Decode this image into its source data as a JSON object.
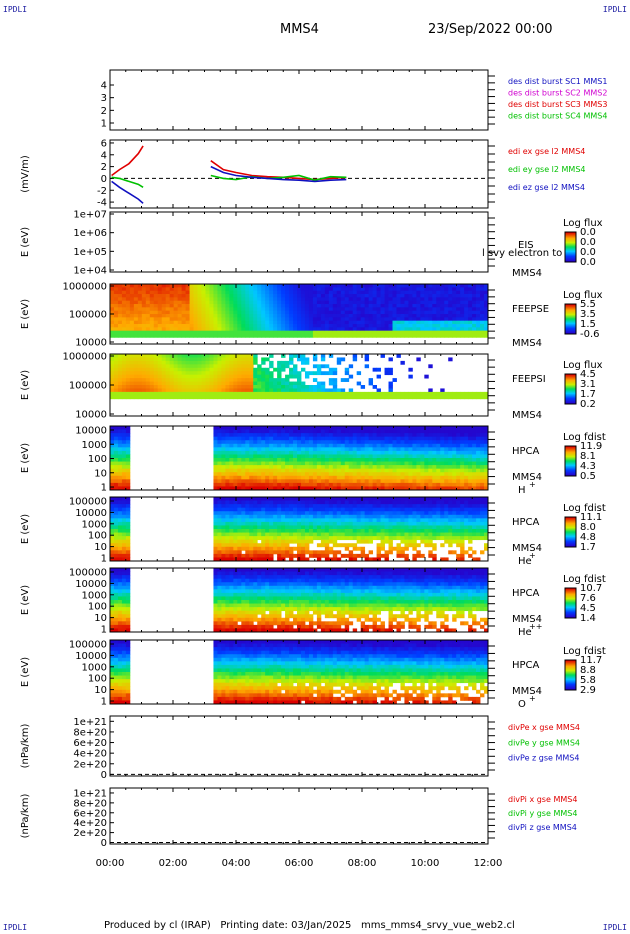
{
  "corners": {
    "tl": "IPDLI",
    "tr": "IPDLI",
    "bl": "IPDLI",
    "br": "IPDLI"
  },
  "header": {
    "spacecraft": "MMS4",
    "date": "23/Sep/2022 00:00"
  },
  "footer": {
    "produced_by": "Produced by cl (IRAP)",
    "printing_date": "Printing date: 03/Jan/2025",
    "script": "mms_mms4_srvy_vue_web2.cl"
  },
  "colors": {
    "blue": "#1010c0",
    "magenta": "#d000d0",
    "red": "#e00000",
    "green": "#00c000",
    "black": "#000000"
  },
  "chart_data": [
    {
      "type": "line",
      "panel": "sc-position",
      "ylabel": "",
      "yticks": [
        "1",
        "2",
        "3",
        "4"
      ],
      "ylim": [
        0.8,
        4.4
      ],
      "legend": [
        {
          "name": "des dist burst SC1 MMS1",
          "color": "#1010c0"
        },
        {
          "name": "des dist burst SC2 MMS2",
          "color": "#d000d0"
        },
        {
          "name": "des dist burst SC3 MMS3",
          "color": "#e00000"
        },
        {
          "name": "des dist burst SC4 MMS4",
          "color": "#00c000"
        }
      ],
      "series": []
    },
    {
      "type": "line",
      "panel": "edi-electric-field",
      "ylabel": "(mV/m)",
      "yticks": [
        "-4",
        "-2",
        "0",
        "2",
        "4",
        "6"
      ],
      "ylim": [
        -5,
        6.5
      ],
      "x_unit": "hours",
      "dashed_zero": true,
      "legend": [
        {
          "name": "edi ex gse l2 MMS4",
          "color": "#e00000"
        },
        {
          "name": "edi ey gse l2 MMS4",
          "color": "#00c000"
        },
        {
          "name": "edi ez gse l2 MMS4",
          "color": "#1010c0"
        }
      ],
      "series": [
        {
          "color": "#e00000",
          "x": [
            0.05,
            0.3,
            0.6,
            0.9,
            1.05,
            3.2,
            3.6,
            4.0,
            4.5,
            5.0,
            5.5,
            6.0,
            6.5,
            7.0,
            7.5
          ],
          "y": [
            0.5,
            1.5,
            2.5,
            4.2,
            5.5,
            3.0,
            1.5,
            1.0,
            0.5,
            0.3,
            0.2,
            0.0,
            -0.2,
            0.0,
            0.2
          ]
        },
        {
          "color": "#00c000",
          "x": [
            0.05,
            0.3,
            0.6,
            0.9,
            1.05,
            3.2,
            3.6,
            4.0,
            4.5,
            5.0,
            5.5,
            6.0,
            6.5,
            7.0,
            7.5
          ],
          "y": [
            0.2,
            0.0,
            -0.5,
            -1.0,
            -1.5,
            0.5,
            0.0,
            -0.2,
            0.3,
            0.0,
            0.2,
            0.5,
            -0.3,
            0.3,
            0.2
          ]
        },
        {
          "color": "#1010c0",
          "x": [
            0.05,
            0.3,
            0.6,
            0.9,
            1.05,
            3.2,
            3.6,
            4.0,
            4.5,
            5.0,
            5.5,
            6.0,
            6.5,
            7.0,
            7.5
          ],
          "y": [
            -0.5,
            -1.5,
            -2.5,
            -3.5,
            -4.2,
            2.0,
            1.0,
            0.5,
            0.2,
            0.0,
            -0.2,
            -0.3,
            -0.5,
            -0.3,
            -0.2
          ]
        }
      ]
    },
    {
      "type": "heatmap",
      "panel": "eis",
      "ylabel": "E (eV)",
      "yticks": [
        "1e+04",
        "1e+05",
        "1e+06",
        "1e+07"
      ],
      "labels": [
        "EIS",
        "MMS4"
      ],
      "overlay_text": "l svy electron to",
      "colorbar": {
        "title": "Log flux",
        "ticks": [
          "0.0",
          "0.0",
          "0.0",
          "0.0"
        ]
      },
      "blank": true
    },
    {
      "type": "heatmap",
      "panel": "feeps-electron",
      "ylabel": "E (eV)",
      "yticks": [
        "10000",
        "100000",
        "1000000"
      ],
      "labels": [
        "FEEPSE",
        "MMS4"
      ],
      "colorbar": {
        "title": "Log flux",
        "ticks": [
          "5.5",
          "3.5",
          "1.5",
          "-0.6"
        ]
      }
    },
    {
      "type": "heatmap",
      "panel": "feeps-ion",
      "ylabel": "E (eV)",
      "yticks": [
        "10000",
        "100000",
        "1000000"
      ],
      "labels": [
        "FEEPSI",
        "MMS4"
      ],
      "colorbar": {
        "title": "Log flux",
        "ticks": [
          "4.5",
          "3.1",
          "1.7",
          "0.2"
        ]
      }
    },
    {
      "type": "heatmap",
      "panel": "hpca-h",
      "ylabel": "E (eV)",
      "yticks": [
        "1",
        "10",
        "100",
        "1000",
        "10000"
      ],
      "labels": [
        "HPCA",
        "MMS4"
      ],
      "species": "H",
      "charge": "+",
      "colorbar": {
        "title": "Log fdist",
        "ticks": [
          "11.9",
          "8.1",
          "4.3",
          "0.5"
        ]
      }
    },
    {
      "type": "heatmap",
      "panel": "hpca-he1",
      "ylabel": "E (eV)",
      "yticks": [
        "1",
        "10",
        "100",
        "1000",
        "10000",
        "100000"
      ],
      "labels": [
        "HPCA",
        "MMS4"
      ],
      "species": "He",
      "charge": "+",
      "colorbar": {
        "title": "Log fdist",
        "ticks": [
          "11.1",
          "8.0",
          "4.8",
          "1.7"
        ]
      }
    },
    {
      "type": "heatmap",
      "panel": "hpca-he2",
      "ylabel": "E (eV)",
      "yticks": [
        "1",
        "10",
        "100",
        "1000",
        "10000",
        "100000"
      ],
      "labels": [
        "HPCA",
        "MMS4"
      ],
      "species": "He",
      "charge": "++",
      "colorbar": {
        "title": "Log fdist",
        "ticks": [
          "10.7",
          "7.6",
          "4.5",
          "1.4"
        ]
      }
    },
    {
      "type": "heatmap",
      "panel": "hpca-o",
      "ylabel": "E (eV)",
      "yticks": [
        "1",
        "10",
        "100",
        "1000",
        "10000",
        "100000"
      ],
      "labels": [
        "HPCA",
        "MMS4"
      ],
      "species": "O",
      "charge": "+",
      "colorbar": {
        "title": "Log fdist",
        "ticks": [
          "11.7",
          "8.8",
          "5.8",
          "2.9"
        ]
      }
    },
    {
      "type": "line",
      "panel": "divpe",
      "ylabel": "(nPa/km)",
      "yticks": [
        "0",
        "2e+20",
        "4e+20",
        "6e+20",
        "8e+20",
        "1e+21"
      ],
      "ylim": [
        -3e+19,
        1.1e+21
      ],
      "dashed_zero": true,
      "legend": [
        {
          "name": "divPe x gse MMS4",
          "color": "#e00000"
        },
        {
          "name": "divPe y gse MMS4",
          "color": "#00c000"
        },
        {
          "name": "divPe z gse MMS4",
          "color": "#1010c0"
        }
      ],
      "series": []
    },
    {
      "type": "line",
      "panel": "divpi",
      "ylabel": "(nPa/km)",
      "yticks": [
        "0",
        "2e+20",
        "4e+20",
        "6e+20",
        "8e+20",
        "1e+21"
      ],
      "ylim": [
        -3e+19,
        1.1e+21
      ],
      "dashed_zero": true,
      "legend": [
        {
          "name": "divPi x gse MMS4",
          "color": "#e00000"
        },
        {
          "name": "divPi y gse MMS4",
          "color": "#00c000"
        },
        {
          "name": "divPi z gse MMS4",
          "color": "#1010c0"
        }
      ],
      "series": []
    }
  ],
  "x_axis": {
    "ticks": [
      "00:00",
      "02:00",
      "04:00",
      "06:00",
      "08:00",
      "10:00",
      "12:00"
    ],
    "range_hours": [
      0,
      12
    ]
  }
}
